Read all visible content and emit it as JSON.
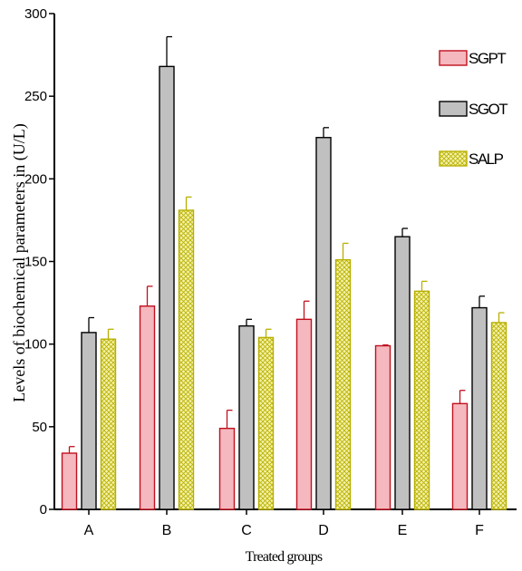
{
  "chart_data": {
    "type": "bar",
    "title": "",
    "xlabel": "Treated groups",
    "ylabel": "Levels of biochemical parameters in (U/L)",
    "categories": [
      "A",
      "B",
      "C",
      "D",
      "E",
      "F"
    ],
    "ylim": [
      0,
      300
    ],
    "yticks": [
      0,
      50,
      100,
      150,
      200,
      250,
      300
    ],
    "grid": false,
    "legend_position": "top-right",
    "series": [
      {
        "name": "SGPT",
        "values": [
          34,
          123,
          49,
          115,
          99,
          64
        ],
        "errors": [
          4,
          12,
          11,
          11,
          0.5,
          8
        ],
        "fill": "#f4b8be",
        "stroke": "#c0101e",
        "pattern": "solid"
      },
      {
        "name": "SGOT",
        "values": [
          107,
          268,
          111,
          225,
          165,
          122
        ],
        "errors": [
          9,
          18,
          4,
          6,
          5,
          7
        ],
        "fill": "#c0c0c0",
        "stroke": "#000000",
        "pattern": "solid"
      },
      {
        "name": "SALP",
        "values": [
          103,
          181,
          104,
          151,
          132,
          113
        ],
        "errors": [
          6,
          8,
          5,
          10,
          6,
          6
        ],
        "fill": "#f4f2a8",
        "stroke": "#b8b000",
        "pattern": "crosshatch"
      }
    ]
  }
}
